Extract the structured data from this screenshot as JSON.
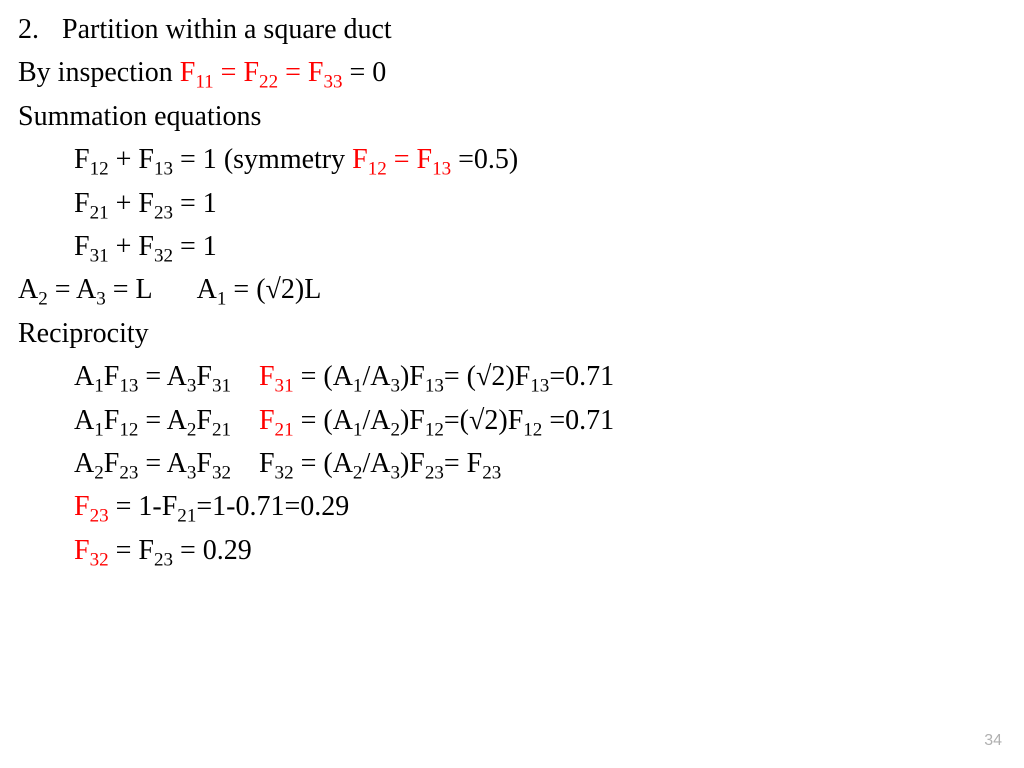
{
  "page_number": "34",
  "colors": {
    "highlight": "#ff0000",
    "text": "#000000",
    "bg": "#ffffff",
    "pagenum": "#b0b0b0"
  },
  "typography": {
    "font_family": "Times New Roman",
    "font_size_pt": 21,
    "sub_scale": 0.68
  },
  "title": {
    "num": "2.",
    "text": "Partition within a square duct"
  },
  "inspection": {
    "prefix": "By inspection ",
    "f11": "F",
    "f11_sub": "11",
    "eq1": " = ",
    "f22": "F",
    "f22_sub": "22",
    "eq2": " = ",
    "f33": "F",
    "f33_sub": "33",
    "suffix": " = 0"
  },
  "summation_label": "Summation equations",
  "sum1": {
    "a": "F",
    "a_sub": "12",
    "plus": " + ",
    "b": "F",
    "b_sub": "13",
    "eq": " = 1",
    "paren_open": "  (symmetry ",
    "c": "F",
    "c_sub": "12",
    "mid": " = ",
    "d": "F",
    "d_sub": "13",
    "tail": " =0.5)",
    "paren_close": ""
  },
  "sum2": {
    "a": "F",
    "a_sub": "21",
    "plus": " + ",
    "b": "F",
    "b_sub": "23",
    "eq": " = 1"
  },
  "sum3": {
    "a": "F",
    "a_sub": "31",
    "plus": " + ",
    "b": "F",
    "b_sub": "32",
    "eq": " = 1"
  },
  "areas": {
    "a2": "A",
    "a2_sub": "2",
    "eq1": " = ",
    "a3": "A",
    "a3_sub": "3",
    "eq2": " = L",
    "a1": "A",
    "a1_sub": "1",
    "a1_eq": " = (√2)L"
  },
  "recip_label": "Reciprocity",
  "r1": {
    "l1": "A",
    "l1s": "1",
    "l2": "F",
    "l2s": "13",
    "mid": " = ",
    "l3": "A",
    "l3s": "3",
    "l4": "F",
    "l4s": "31",
    "rF": "F",
    "rFs": "31",
    "rhs_a": " = (A",
    "rhs_as": "1",
    "rhs_b": "/A",
    "rhs_bs": "3",
    "rhs_c": ")F",
    "rhs_cs": "13",
    "rhs_d": "= (√2)F",
    "rhs_ds": "13",
    "rhs_e": "=0.71"
  },
  "r2": {
    "l1": "A",
    "l1s": "1",
    "l2": "F",
    "l2s": "12",
    "mid": " = ",
    "l3": "A",
    "l3s": "2",
    "l4": "F",
    "l4s": "21",
    "rF": "F",
    "rFs": "21",
    "rhs_a": " = (A",
    "rhs_as": "1",
    "rhs_b": "/A",
    "rhs_bs": "2",
    "rhs_c": ")F",
    "rhs_cs": "12",
    "rhs_d": "=(√2)F",
    "rhs_ds": "12",
    "rhs_e": " =0.71"
  },
  "r3": {
    "l1": "A",
    "l1s": "2",
    "l2": "F",
    "l2s": "23",
    "mid": " = ",
    "l3": "A",
    "l3s": "3",
    "l4": "F",
    "l4s": "32",
    "rF": "F",
    "rFs": "32",
    "rhs_a": " = (A",
    "rhs_as": "2",
    "rhs_b": "/A",
    "rhs_bs": "3",
    "rhs_c": ")F",
    "rhs_cs": "23",
    "rhs_d": "= F",
    "rhs_ds": "23",
    "rhs_e": ""
  },
  "r4": {
    "F": "F",
    "Fs": "23",
    "a": " = 1-F",
    "as": "21",
    "b": "=1-0.71=0.29"
  },
  "r5": {
    "F": "F",
    "Fs": "32",
    "a": " = F",
    "as": "23",
    "b": " = 0.29"
  }
}
